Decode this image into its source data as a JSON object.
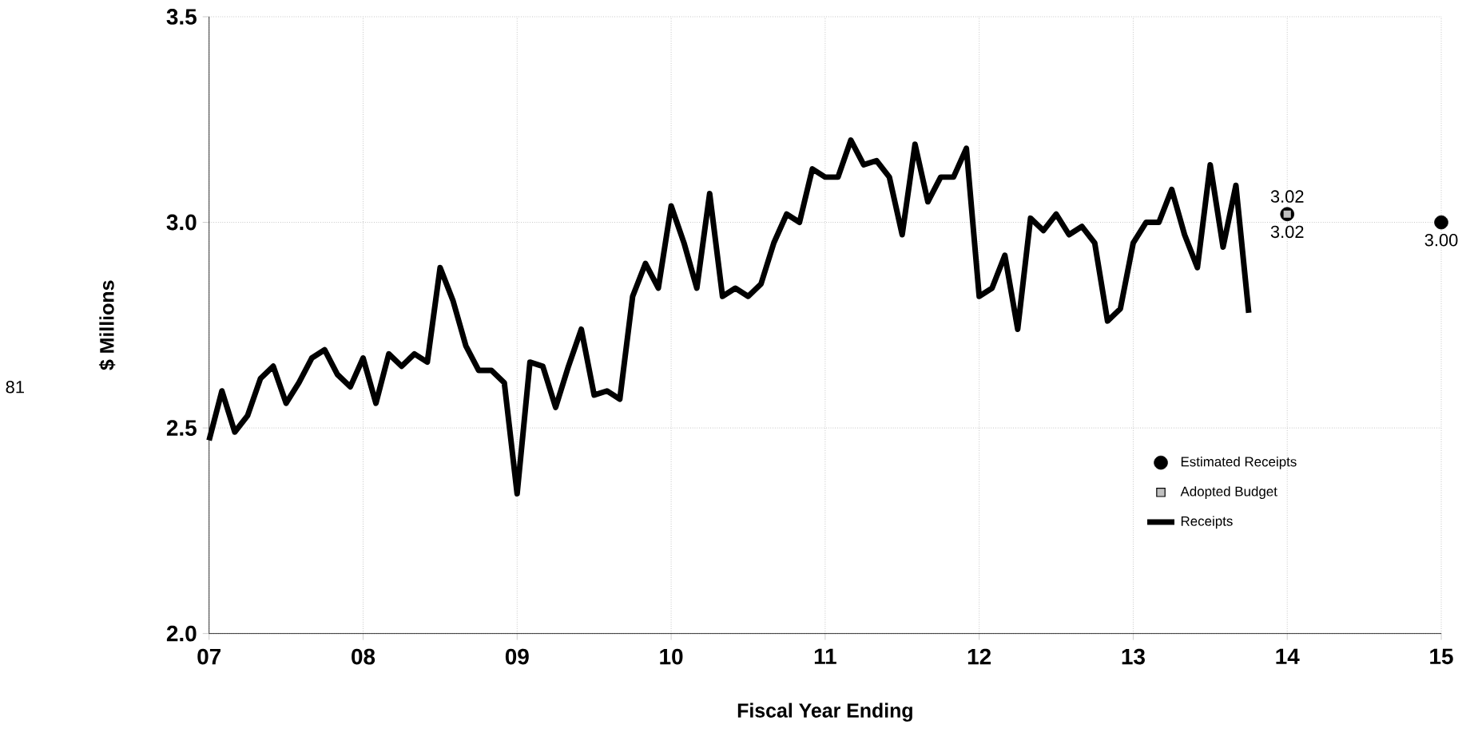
{
  "chart_data": {
    "type": "line",
    "xlabel": "Fiscal Year Ending",
    "ylabel": "$ Millions",
    "annotations": [
      "81"
    ],
    "xlim": [
      7,
      15
    ],
    "ylim": [
      2,
      3.5
    ],
    "xticks": [
      {
        "value": 7,
        "label": "07"
      },
      {
        "value": 8,
        "label": "08"
      },
      {
        "value": 9,
        "label": "09"
      },
      10,
      11,
      12,
      13,
      14,
      15
    ],
    "yticks": [
      {
        "value": 2,
        "label": "2.0"
      },
      2.5,
      {
        "value": 3,
        "label": "3.0"
      },
      3.5
    ],
    "grid": true,
    "legend": "bottom right",
    "series": [
      {
        "name": "Estimated Receipts",
        "type": "scatter",
        "marker": "circle",
        "color": "#000000",
        "x": [
          14,
          15
        ],
        "values": [
          3.02,
          3.0
        ],
        "value_labels": [
          "3.02",
          "3.00"
        ]
      },
      {
        "name": "Adopted Budget",
        "type": "scatter",
        "marker": "square",
        "color": "#c0c0c0",
        "x": [
          14
        ],
        "values": [
          3.02
        ],
        "value_labels": [
          "3.02"
        ]
      },
      {
        "name": "Receipts",
        "marker": "none",
        "line_style": "solid",
        "color": "#000000",
        "x": [
          7.0,
          7.0833,
          7.1667,
          7.25,
          7.3333,
          7.4167,
          7.5,
          7.5833,
          7.6667,
          7.75,
          7.8333,
          7.9167,
          8.0,
          8.0833,
          8.1667,
          8.25,
          8.3333,
          8.4167,
          8.5,
          8.5833,
          8.6667,
          8.75,
          8.8333,
          8.9167,
          9.0,
          9.0833,
          9.1667,
          9.25,
          9.3333,
          9.4167,
          9.5,
          9.5833,
          9.6667,
          9.75,
          9.8333,
          9.9167,
          10.0,
          10.0833,
          10.1667,
          10.25,
          10.3333,
          10.4167,
          10.5,
          10.5833,
          10.6667,
          10.75,
          10.8333,
          10.9167,
          11.0,
          11.0833,
          11.1667,
          11.25,
          11.3333,
          11.4167,
          11.5,
          11.5833,
          11.6667,
          11.75,
          11.8333,
          11.9167,
          12.0,
          12.0833,
          12.1667,
          12.25,
          12.3333,
          12.4167,
          12.5,
          12.5833,
          12.6667,
          12.75,
          12.8333,
          12.9167,
          13.0,
          13.0833,
          13.1667,
          13.25,
          13.3333,
          13.4167,
          13.5,
          13.5833,
          13.6667,
          13.75
        ],
        "values": [
          2.47,
          2.59,
          2.49,
          2.53,
          2.62,
          2.65,
          2.56,
          2.61,
          2.67,
          2.69,
          2.63,
          2.6,
          2.67,
          2.56,
          2.68,
          2.65,
          2.68,
          2.66,
          2.89,
          2.81,
          2.7,
          2.64,
          2.64,
          2.61,
          2.34,
          2.66,
          2.65,
          2.55,
          2.65,
          2.74,
          2.58,
          2.59,
          2.57,
          2.82,
          2.9,
          2.84,
          3.04,
          2.95,
          2.84,
          3.07,
          2.82,
          2.84,
          2.82,
          2.85,
          2.95,
          3.02,
          3.0,
          3.13,
          3.11,
          3.11,
          3.2,
          3.14,
          3.15,
          3.11,
          2.97,
          3.19,
          3.05,
          3.11,
          3.11,
          3.18,
          2.82,
          2.84,
          2.92,
          2.74,
          3.01,
          2.98,
          3.02,
          2.97,
          2.99,
          2.95,
          2.76,
          2.79,
          2.95,
          3.0,
          3.0,
          3.08,
          2.97,
          2.89,
          3.14,
          2.94,
          3.09,
          2.78
        ]
      }
    ]
  }
}
